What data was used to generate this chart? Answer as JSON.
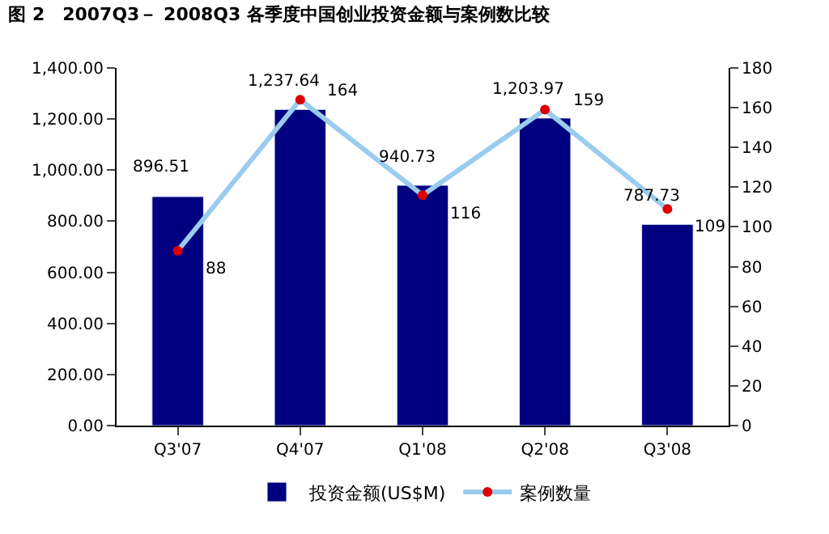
{
  "chart_data": {
    "type": "bar",
    "title": "图 2　2007Q3－ 2008Q3 各季度中国创业投资金额与案例数比较",
    "categories": [
      "Q3'07",
      "Q4'07",
      "Q1'08",
      "Q2'08",
      "Q3'08"
    ],
    "series": [
      {
        "name": "投资金额(US$M)",
        "color": "#000080",
        "values": [
          896.51,
          1237.64,
          940.73,
          1203.97,
          787.73
        ],
        "value_labels": [
          "896.51",
          "1,237.64",
          "940.73",
          "1,203.97",
          "787.73"
        ]
      },
      {
        "name": "案例数量",
        "type": "line",
        "axis": "y2",
        "color": "#99ccee",
        "marker": "circle",
        "values": [
          88,
          164,
          116,
          159,
          109
        ],
        "value_labels": [
          "88",
          "164",
          "116",
          "159",
          "109"
        ]
      }
    ],
    "ylim": [
      0,
      1400
    ],
    "yticks": [
      {
        "value": 0,
        "label": "0.00"
      },
      {
        "value": 200,
        "label": "200.00"
      },
      {
        "value": 400,
        "label": "400.00"
      },
      {
        "value": 600,
        "label": "600.00"
      },
      {
        "value": 800,
        "label": "800.00"
      },
      {
        "value": 1000,
        "label": "1,000.00"
      },
      {
        "value": 1200,
        "label": "1,200.00"
      },
      {
        "value": 1400,
        "label": "1,400.00"
      }
    ],
    "y2lim": [
      0,
      180
    ],
    "y2ticks": [
      0,
      20,
      40,
      60,
      80,
      100,
      120,
      140,
      160,
      180
    ],
    "legend": "bottom"
  }
}
